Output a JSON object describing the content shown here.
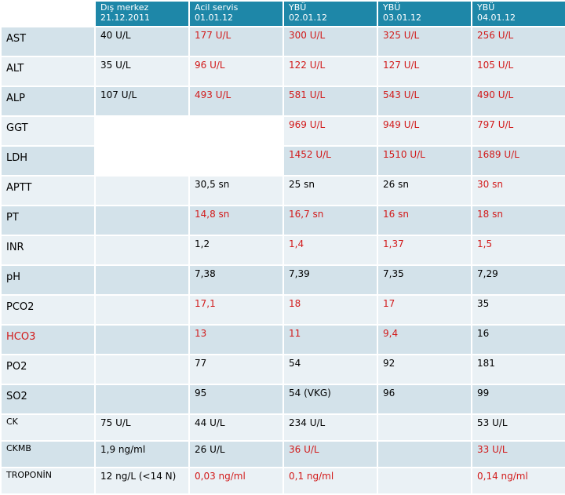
{
  "header": {
    "cols": [
      {
        "line1": "Dış merkez",
        "line2": "21.12.2011"
      },
      {
        "line1": "Acil servis",
        "line2": "01.01.12"
      },
      {
        "line1": "YBÜ",
        "line2": "02.01.12"
      },
      {
        "line1": "YBÜ",
        "line2": "03.01.12"
      },
      {
        "line1": "YBÜ",
        "line2": "04.01.12"
      }
    ]
  },
  "rows": [
    {
      "label": "AST",
      "values": [
        "40 U/L",
        "177 U/L",
        "300 U/L",
        "325 U/L",
        "256 U/L"
      ]
    },
    {
      "label": "ALT",
      "values": [
        "35 U/L",
        "96 U/L",
        "122 U/L",
        "127 U/L",
        "105 U/L"
      ]
    },
    {
      "label": "ALP",
      "values": [
        "107 U/L",
        "493 U/L",
        "581 U/L",
        "543 U/L",
        "490 U/L"
      ]
    },
    {
      "label": "GGT",
      "values": [
        "",
        "",
        "969 U/L",
        "949 U/L",
        "797 U/L"
      ]
    },
    {
      "label": "LDH",
      "values": [
        "",
        "",
        "1452 U/L",
        "1510 U/L",
        "1689 U/L"
      ]
    },
    {
      "label": "APTT",
      "values": [
        "",
        "30,5 sn",
        "25 sn",
        "26 sn",
        "30 sn"
      ]
    },
    {
      "label": "PT",
      "values": [
        "",
        "14,8 sn",
        "16,7 sn",
        "16 sn",
        "18 sn"
      ]
    },
    {
      "label": "INR",
      "values": [
        "",
        "1,2",
        "1,4",
        "1,37",
        "1,5"
      ]
    },
    {
      "label": "pH",
      "values": [
        "",
        "7,38",
        "7,39",
        "7,35",
        "7,29"
      ]
    },
    {
      "label": "PCO2",
      "values": [
        "",
        "17,1",
        "18",
        "17",
        "35"
      ]
    },
    {
      "label": "HCO3",
      "values": [
        "",
        "13",
        "11",
        "9,4",
        "16"
      ]
    },
    {
      "label": "PO2",
      "values": [
        "",
        "77",
        "54",
        "92",
        "181"
      ]
    },
    {
      "label": "SO2",
      "values": [
        "",
        "95",
        "54 (VKG)",
        "96",
        "99"
      ]
    },
    {
      "label": "CK",
      "values": [
        "75 U/L",
        "44 U/L",
        "234 U/L",
        "",
        "53 U/L"
      ]
    },
    {
      "label": "CKMB",
      "values": [
        "1,9 ng/ml",
        "26 U/L",
        "36 U/L",
        "",
        "33 U/L"
      ]
    },
    {
      "label": "TROPONİN",
      "values": [
        "12 ng/L (<14 N)",
        "0,03 ng/ml",
        "0,1 ng/ml",
        "",
        "0,14 ng/ml"
      ]
    }
  ],
  "colors": {
    "header_bg": "#1e87a8",
    "row_odd": "#d3e2ea",
    "row_even": "#eaf1f5",
    "highlight_text": "#d21a1a"
  }
}
